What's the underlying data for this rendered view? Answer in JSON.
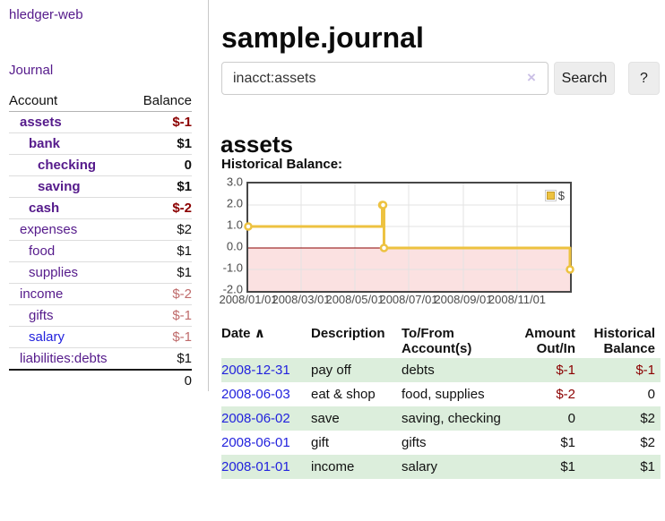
{
  "app": {
    "title": "hledger-web"
  },
  "sidebar": {
    "journal_link": "Journal",
    "headers": {
      "account": "Account",
      "balance": "Balance"
    },
    "accounts": [
      {
        "name": "assets",
        "depth": 1,
        "bold": true,
        "balance": "$-1",
        "balance_style": "neg-strong"
      },
      {
        "name": "bank",
        "depth": 2,
        "bold": true,
        "balance": "$1",
        "balance_style": "pos"
      },
      {
        "name": "checking",
        "depth": 3,
        "bold": true,
        "balance": "0",
        "balance_style": "pos"
      },
      {
        "name": "saving",
        "depth": 3,
        "bold": true,
        "balance": "$1",
        "balance_style": "pos"
      },
      {
        "name": "cash",
        "depth": 2,
        "bold": true,
        "balance": "$-2",
        "balance_style": "neg-strong"
      },
      {
        "name": "expenses",
        "depth": 1,
        "bold": false,
        "balance": "$2",
        "balance_style": "pos"
      },
      {
        "name": "food",
        "depth": 2,
        "bold": false,
        "balance": "$1",
        "balance_style": "pos"
      },
      {
        "name": "supplies",
        "depth": 2,
        "bold": false,
        "balance": "$1",
        "balance_style": "pos"
      },
      {
        "name": "income",
        "depth": 1,
        "bold": false,
        "balance": "$-2",
        "balance_style": "neg-light"
      },
      {
        "name": "gifts",
        "depth": 2,
        "bold": false,
        "balance": "$-1",
        "balance_style": "neg-light"
      },
      {
        "name": "salary",
        "depth": 2,
        "bold": false,
        "balance": "$-1",
        "balance_style": "neg-light",
        "link_style": "blue"
      },
      {
        "name": "liabilities:debts",
        "depth": 1,
        "bold": false,
        "balance": "$1",
        "balance_style": "pos"
      }
    ],
    "total": "0"
  },
  "main": {
    "title": "sample.journal",
    "account_heading": "assets",
    "chart_label": "Historical Balance:"
  },
  "search": {
    "query": "inacct:assets",
    "clear_icon": "×",
    "search_button": "Search",
    "help_button": "?"
  },
  "chart_data": {
    "type": "line",
    "step": true,
    "title": "Historical Balance",
    "series": [
      {
        "name": "$",
        "color": "#edc240",
        "points": [
          [
            "2008-01-01",
            1
          ],
          [
            "2008-06-01",
            2
          ],
          [
            "2008-06-02",
            2
          ],
          [
            "2008-06-03",
            0
          ],
          [
            "2008-12-31",
            -1
          ]
        ]
      }
    ],
    "x_range": [
      "2008-01-01",
      "2008-12-31"
    ],
    "x_ticks": [
      "2008/01/01",
      "2008/03/01",
      "2008/05/01",
      "2008/07/01",
      "2008/09/01",
      "2008/11/01"
    ],
    "y_ticks": [
      "3.0",
      "2.0",
      "1.0",
      "0.0",
      "-1.0",
      "-2.0"
    ],
    "ylim": [
      -2,
      3
    ],
    "grid": true,
    "legend": {
      "label": "$",
      "position": "top-right"
    },
    "negative_region_color": "#fbe1e1",
    "zero_line_color": "#8b0000",
    "gridline_color": "#e3e3e3"
  },
  "register": {
    "headers": {
      "date": "Date",
      "description": "Description",
      "accounts": "To/From\nAccount(s)",
      "amount": "Amount\nOut/In",
      "balance": "Historical\nBalance"
    },
    "sort_icon": "∧",
    "rows": [
      {
        "date": "2008-12-31",
        "description": "pay off",
        "accounts": "debts",
        "amount": "$-1",
        "amount_negative": true,
        "balance": "$-1",
        "balance_negative": true,
        "highlight": true
      },
      {
        "date": "2008-06-03",
        "description": "eat & shop",
        "accounts": "food, supplies",
        "amount": "$-2",
        "amount_negative": true,
        "balance": "0",
        "balance_negative": false,
        "highlight": false
      },
      {
        "date": "2008-06-02",
        "description": "save",
        "accounts": "saving, checking",
        "amount": "0",
        "amount_negative": false,
        "balance": "$2",
        "balance_negative": false,
        "highlight": true
      },
      {
        "date": "2008-06-01",
        "description": "gift",
        "accounts": "gifts",
        "amount": "$1",
        "amount_negative": false,
        "balance": "$2",
        "balance_negative": false,
        "highlight": false
      },
      {
        "date": "2008-01-01",
        "description": "income",
        "accounts": "salary",
        "amount": "$1",
        "amount_negative": false,
        "balance": "$1",
        "balance_negative": false,
        "highlight": true
      }
    ]
  },
  "colors": {
    "link_purple": "#551a8b",
    "link_blue": "#2222dd",
    "negative_dark": "#8b0000",
    "negative_light": "#bf6b6b",
    "row_highlight_green": "#dceedc",
    "chart_line": "#edc240",
    "chart_negative_fill": "#fbe1e1",
    "chart_zero_line": "#8b0000"
  }
}
